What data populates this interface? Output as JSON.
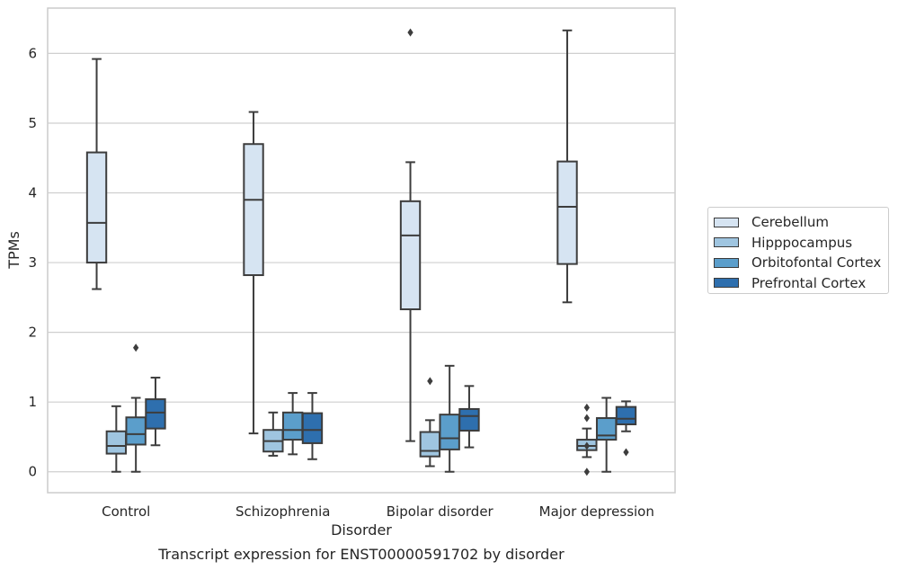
{
  "chart_data": {
    "type": "box",
    "title": "Transcript expression for ENST00000591702 by disorder",
    "xlabel": "Disorder",
    "ylabel": "TPMs",
    "ylim": [
      -0.3,
      6.65
    ],
    "yticks": [
      0,
      1,
      2,
      3,
      4,
      5,
      6
    ],
    "categories": [
      "Control",
      "Schizophrenia",
      "Bipolar disorder",
      "Major depression"
    ],
    "grid": "horizontal",
    "legend_position": "right",
    "series": [
      {
        "name": "Cerebellum",
        "color": "#d6e4f2",
        "boxes": [
          {
            "whislo": 2.62,
            "q1": 3.0,
            "med": 3.57,
            "q3": 4.58,
            "whishi": 5.92,
            "fliers": []
          },
          {
            "whislo": 0.55,
            "q1": 2.82,
            "med": 3.9,
            "q3": 4.7,
            "whishi": 5.16,
            "fliers": []
          },
          {
            "whislo": 0.44,
            "q1": 2.33,
            "med": 3.39,
            "q3": 3.88,
            "whishi": 4.44,
            "fliers": [
              6.3
            ]
          },
          {
            "whislo": 2.43,
            "q1": 2.98,
            "med": 3.8,
            "q3": 4.45,
            "whishi": 6.33,
            "fliers": []
          }
        ]
      },
      {
        "name": "Hipppocampus",
        "color": "#9fc5e0",
        "boxes": [
          {
            "whislo": 0.0,
            "q1": 0.26,
            "med": 0.37,
            "q3": 0.58,
            "whishi": 0.94,
            "fliers": []
          },
          {
            "whislo": 0.23,
            "q1": 0.29,
            "med": 0.44,
            "q3": 0.6,
            "whishi": 0.85,
            "fliers": []
          },
          {
            "whislo": 0.08,
            "q1": 0.22,
            "med": 0.3,
            "q3": 0.57,
            "whishi": 0.74,
            "fliers": [
              1.3
            ]
          },
          {
            "whislo": 0.21,
            "q1": 0.31,
            "med": 0.37,
            "q3": 0.46,
            "whishi": 0.62,
            "fliers": [
              0.0,
              0.37,
              0.77,
              0.92
            ]
          }
        ]
      },
      {
        "name": "Orbitofontal Cortex",
        "color": "#5b9ecb",
        "boxes": [
          {
            "whislo": 0.0,
            "q1": 0.39,
            "med": 0.54,
            "q3": 0.78,
            "whishi": 1.06,
            "fliers": [
              1.78
            ]
          },
          {
            "whislo": 0.25,
            "q1": 0.46,
            "med": 0.6,
            "q3": 0.85,
            "whishi": 1.13,
            "fliers": []
          },
          {
            "whislo": 0.0,
            "q1": 0.32,
            "med": 0.48,
            "q3": 0.82,
            "whishi": 1.52,
            "fliers": []
          },
          {
            "whislo": 0.0,
            "q1": 0.46,
            "med": 0.52,
            "q3": 0.77,
            "whishi": 1.06,
            "fliers": []
          }
        ]
      },
      {
        "name": "Prefrontal Cortex",
        "color": "#2e6fae",
        "boxes": [
          {
            "whislo": 0.38,
            "q1": 0.62,
            "med": 0.85,
            "q3": 1.04,
            "whishi": 1.35,
            "fliers": []
          },
          {
            "whislo": 0.18,
            "q1": 0.41,
            "med": 0.6,
            "q3": 0.84,
            "whishi": 1.13,
            "fliers": []
          },
          {
            "whislo": 0.35,
            "q1": 0.59,
            "med": 0.8,
            "q3": 0.9,
            "whishi": 1.23,
            "fliers": []
          },
          {
            "whislo": 0.58,
            "q1": 0.68,
            "med": 0.76,
            "q3": 0.93,
            "whishi": 1.01,
            "fliers": [
              0.28
            ]
          }
        ]
      }
    ]
  }
}
